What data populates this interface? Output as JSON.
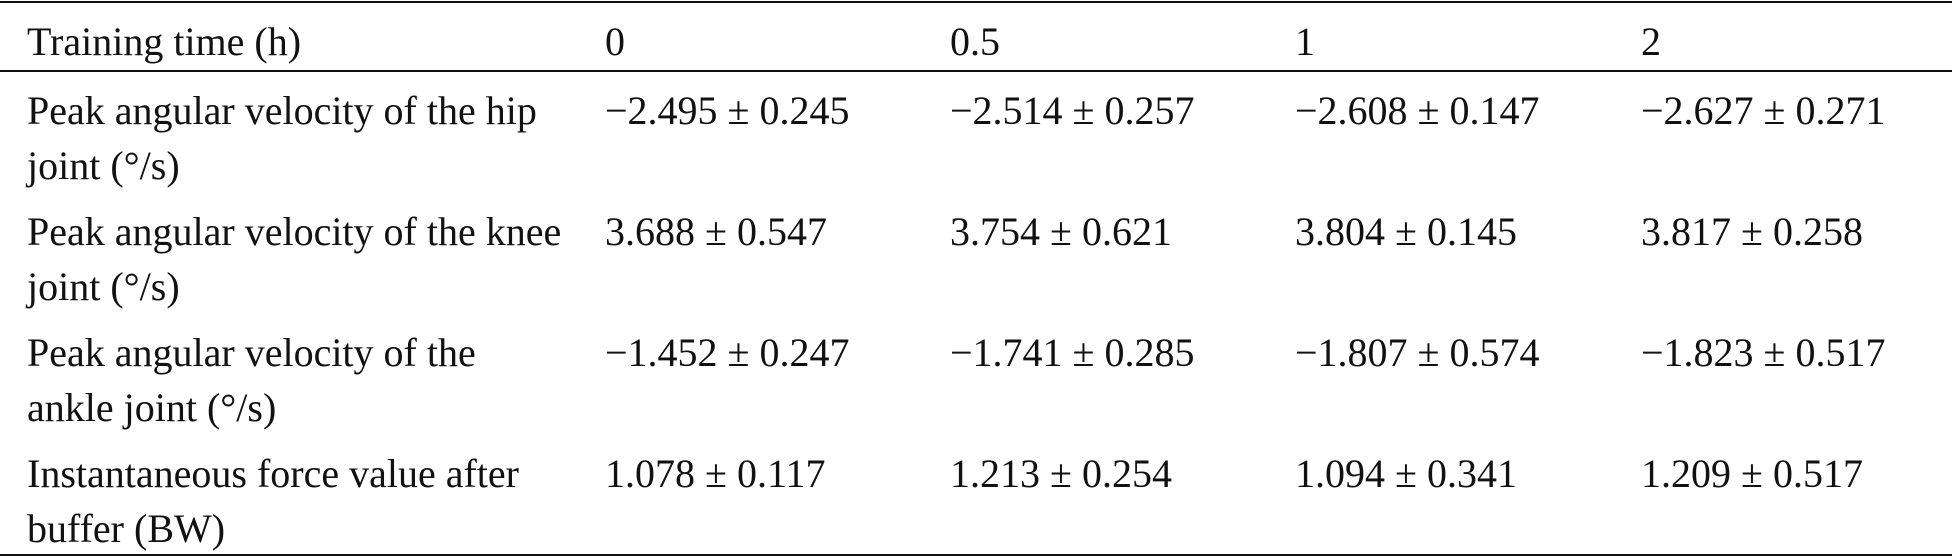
{
  "table": {
    "header": [
      "Training time (h)",
      "0",
      "0.5",
      "1",
      "2"
    ],
    "rows": [
      [
        "Peak angular velocity of the hip joint (°/s)",
        "−2.495 ± 0.245",
        "−2.514 ± 0.257",
        "−2.608 ± 0.147",
        "−2.627 ± 0.271"
      ],
      [
        "Peak angular velocity of the knee joint (°/s)",
        "3.688 ± 0.547",
        "3.754 ± 0.621",
        "3.804 ± 0.145",
        "3.817 ± 0.258"
      ],
      [
        "Peak angular velocity of the ankle joint (°/s)",
        "−1.452 ± 0.247",
        "−1.741 ± 0.285",
        "−1.807 ± 0.574",
        "−1.823 ± 0.517"
      ],
      [
        "Instantaneous force value after buffer (BW)",
        "1.078 ± 0.117",
        "1.213 ± 0.254",
        "1.094 ± 0.341",
        "1.209 ± 0.517"
      ]
    ]
  }
}
